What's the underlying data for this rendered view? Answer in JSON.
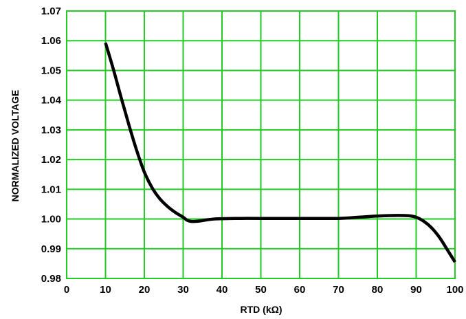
{
  "chart_data": {
    "type": "line",
    "xlabel": "RTD (kΩ)",
    "ylabel": "NORMALIZED VOLTAGE",
    "xlim": [
      0,
      100
    ],
    "ylim": [
      0.98,
      1.07
    ],
    "x_ticks": [
      "0",
      "10",
      "20",
      "30",
      "40",
      "50",
      "60",
      "70",
      "80",
      "90",
      "100"
    ],
    "y_ticks": [
      "0.98",
      "0.99",
      "1.00",
      "1.01",
      "1.02",
      "1.03",
      "1.04",
      "1.05",
      "1.06",
      "1.07"
    ],
    "grid": true,
    "grid_color": "#22cc22",
    "line_color": "#000000",
    "series": [
      {
        "x": [
          10,
          12,
          14,
          16,
          18,
          20,
          22,
          24,
          26,
          28,
          30,
          31,
          32,
          34,
          36,
          38,
          40,
          45,
          50,
          60,
          70,
          75,
          80,
          85,
          88,
          90,
          92,
          94,
          96,
          98,
          100
        ],
        "y": [
          1.0593,
          1.0505,
          1.041,
          1.0318,
          1.0232,
          1.0158,
          1.0105,
          1.0068,
          1.0042,
          1.0022,
          1.0006,
          0.9996,
          0.9992,
          0.9993,
          0.9997,
          1.0,
          1.0001,
          1.0002,
          1.0002,
          1.0002,
          1.0002,
          1.0006,
          1.001,
          1.0012,
          1.0011,
          1.0006,
          0.9992,
          0.997,
          0.9938,
          0.9897,
          0.9855
        ]
      }
    ]
  }
}
